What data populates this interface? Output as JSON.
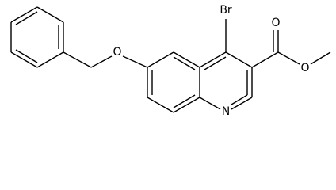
{
  "atoms": [
    {
      "label": "Br"
    },
    {
      "label": "O"
    },
    {
      "label": "O"
    },
    {
      "label": "O"
    },
    {
      "label": "N"
    }
  ]
}
